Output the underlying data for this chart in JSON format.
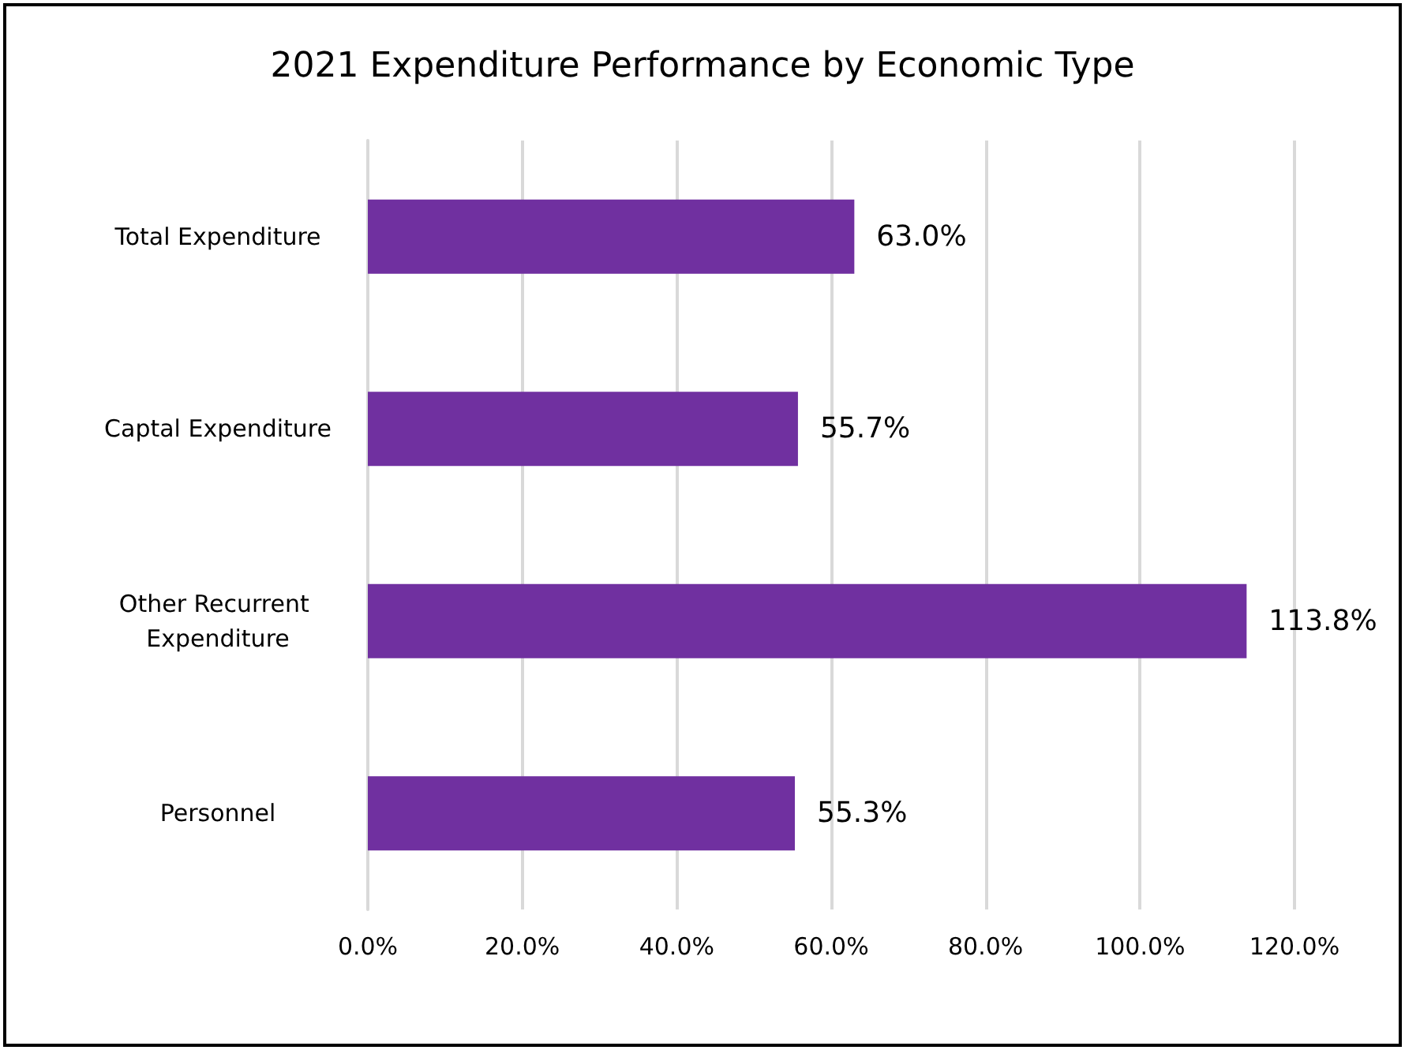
{
  "chart_data": {
    "type": "bar",
    "orientation": "horizontal",
    "title": "2021 Expenditure Performance by Economic Type",
    "categories": [
      "Total Expenditure",
      "Captal Expenditure",
      "Other Recurrent Expenditure",
      "Personnel"
    ],
    "values": [
      63.0,
      55.7,
      113.8,
      55.3
    ],
    "value_labels": [
      "63.0%",
      "55.7%",
      "113.8%",
      "55.3%"
    ],
    "color": "#7030a0",
    "xlim": [
      0,
      120
    ],
    "xticks": [
      {
        "value": 0,
        "label": "0.0%"
      },
      {
        "value": 20,
        "label": "20.0%"
      },
      {
        "value": 40,
        "label": "40.0%"
      },
      {
        "value": 60,
        "label": "60.0%"
      },
      {
        "value": 80,
        "label": "80.0%"
      },
      {
        "value": 100,
        "label": "100.0%"
      },
      {
        "value": 120,
        "label": "120.0%"
      }
    ],
    "grid": "x"
  }
}
